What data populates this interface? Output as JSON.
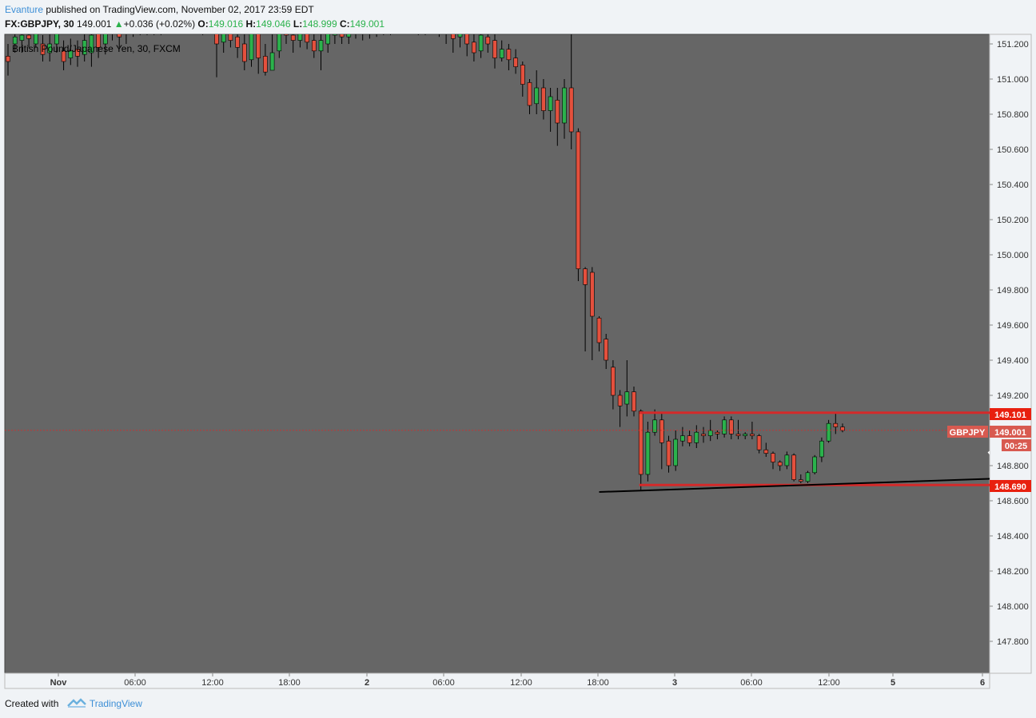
{
  "header": {
    "author": "Evanture",
    "published_text": "published on TradingView.com, November 02, 2017 23:59 EDT"
  },
  "ohlc_bar": {
    "symbol": "FX:GBPJPY, 30",
    "last": "149.001",
    "change": "+0.036 (+0.02%)",
    "o_label": "O:",
    "o": "149.016",
    "h_label": "H:",
    "h": "149.046",
    "l_label": "L:",
    "l": "148.999",
    "c_label": "C:",
    "c": "149.001"
  },
  "colors": {
    "background": "#666666",
    "up_candle": "#2bb24c",
    "down_candle": "#e4503d",
    "level_line": "#d42a2a",
    "trend_line": "#000000",
    "arrow": "#ffffff"
  },
  "footer": {
    "created_with": "Created with",
    "brand": "TradingView"
  },
  "chart_data": {
    "type": "candlestick",
    "title": "British Pound/Japanese Yen, 30, FXCM",
    "ylim": [
      147.6,
      151.35
    ],
    "y_ticks": [
      "151.200",
      "151.000",
      "150.800",
      "150.600",
      "150.400",
      "150.200",
      "150.000",
      "149.800",
      "149.600",
      "149.400",
      "149.200",
      "149.000",
      "148.800",
      "148.600",
      "148.400",
      "148.200",
      "148.000",
      "147.800"
    ],
    "x_ticks": [
      "Nov",
      "06:00",
      "12:00",
      "18:00",
      "2",
      "06:00",
      "12:00",
      "18:00",
      "3",
      "06:00",
      "12:00",
      "5",
      "6"
    ],
    "price_tags": {
      "resistance": "149.101",
      "support": "148.690",
      "symbol": "GBPJPY",
      "current": "149.001",
      "countdown": "00:25"
    },
    "levels": [
      {
        "name": "resistance",
        "value": 149.101
      },
      {
        "name": "support",
        "value": 148.69
      },
      {
        "name": "current",
        "value": 149.001
      }
    ],
    "trendline": {
      "from": [
        -6,
        148.65
      ],
      "to": [
        54,
        148.73
      ]
    },
    "arrow": {
      "from": [
        50,
        148.88
      ],
      "to": [
        63,
        148.24
      ]
    },
    "candles": [
      [
        0,
        151.13,
        151.1,
        151.2,
        151.02
      ],
      [
        1,
        151.2,
        151.24,
        151.3,
        151.15
      ],
      [
        2,
        151.22,
        151.25,
        151.35,
        151.15
      ],
      [
        3,
        151.25,
        151.23,
        151.35,
        151.18
      ],
      [
        4,
        151.2,
        151.28,
        151.35,
        151.18
      ],
      [
        5,
        151.2,
        151.14,
        151.25,
        151.1
      ],
      [
        6,
        151.15,
        151.2,
        151.27,
        151.1
      ],
      [
        7,
        151.2,
        151.26,
        151.33,
        151.15
      ],
      [
        8,
        151.16,
        151.1,
        151.22,
        151.05
      ],
      [
        9,
        151.12,
        151.16,
        151.23,
        151.08
      ],
      [
        10,
        151.17,
        151.13,
        151.22,
        151.07
      ],
      [
        11,
        151.14,
        151.22,
        151.3,
        151.1
      ],
      [
        12,
        151.15,
        151.25,
        151.3,
        151.07
      ],
      [
        13,
        151.28,
        151.18,
        151.3,
        151.12
      ],
      [
        14,
        151.2,
        151.3,
        151.35,
        151.14
      ],
      [
        15,
        151.28,
        151.32,
        151.35,
        151.22
      ],
      [
        16,
        151.28,
        151.24,
        151.35,
        151.18
      ],
      [
        17,
        151.26,
        151.3,
        151.34,
        151.2
      ],
      [
        18,
        151.3,
        151.28,
        151.35,
        151.24
      ],
      [
        19,
        151.29,
        151.32,
        151.35,
        151.25
      ],
      [
        20,
        151.3,
        151.28,
        151.34,
        151.25
      ],
      [
        21,
        151.28,
        151.31,
        151.35,
        151.25
      ],
      [
        22,
        151.3,
        151.29,
        151.34,
        151.25
      ],
      [
        23,
        151.3,
        151.32,
        151.35,
        151.26
      ],
      [
        24,
        151.31,
        151.3,
        151.35,
        151.27
      ],
      [
        25,
        151.3,
        151.32,
        151.35,
        151.27
      ],
      [
        26,
        151.31,
        151.3,
        151.35,
        151.27
      ],
      [
        27,
        151.3,
        151.32,
        151.35,
        151.27
      ],
      [
        28,
        151.32,
        151.29,
        151.35,
        151.25
      ],
      [
        29,
        151.3,
        151.33,
        151.36,
        151.26
      ],
      [
        30,
        151.33,
        151.2,
        151.35,
        151.01
      ],
      [
        31,
        151.21,
        151.3,
        151.35,
        151.15
      ],
      [
        32,
        151.3,
        151.22,
        151.33,
        151.18
      ],
      [
        33,
        151.24,
        151.18,
        151.28,
        151.12
      ],
      [
        34,
        151.2,
        151.1,
        151.27,
        151.05
      ],
      [
        35,
        151.11,
        151.28,
        151.33,
        151.07
      ],
      [
        36,
        151.27,
        151.12,
        151.35,
        151.03
      ],
      [
        37,
        151.13,
        151.04,
        151.2,
        151.02
      ],
      [
        38,
        151.05,
        151.15,
        151.3,
        151.05
      ],
      [
        39,
        151.16,
        151.3,
        151.35,
        151.12
      ],
      [
        40,
        151.3,
        151.25,
        151.35,
        151.2
      ],
      [
        41,
        151.25,
        151.22,
        151.3,
        151.15
      ],
      [
        42,
        151.22,
        151.28,
        151.33,
        151.18
      ],
      [
        43,
        151.27,
        151.21,
        151.3,
        151.17
      ],
      [
        44,
        151.22,
        151.16,
        151.28,
        151.12
      ],
      [
        45,
        151.16,
        151.22,
        151.27,
        151.05
      ],
      [
        46,
        151.2,
        151.26,
        151.3,
        151.15
      ],
      [
        47,
        151.25,
        151.28,
        151.32,
        151.2
      ],
      [
        48,
        151.27,
        151.24,
        151.32,
        151.2
      ],
      [
        49,
        151.24,
        151.28,
        151.33,
        151.2
      ],
      [
        50,
        151.28,
        151.3,
        151.35,
        151.23
      ],
      [
        51,
        151.3,
        151.27,
        151.35,
        151.22
      ],
      [
        52,
        151.27,
        151.31,
        151.35,
        151.23
      ],
      [
        53,
        151.3,
        151.28,
        151.35,
        151.24
      ],
      [
        54,
        151.28,
        151.31,
        151.36,
        151.25
      ],
      [
        55,
        151.3,
        151.29,
        151.35,
        151.25
      ],
      [
        56,
        151.29,
        151.32,
        151.36,
        151.26
      ],
      [
        57,
        151.31,
        151.3,
        151.35,
        151.26
      ],
      [
        58,
        151.3,
        151.32,
        151.36,
        151.27
      ],
      [
        59,
        151.31,
        151.29,
        151.35,
        151.25
      ],
      [
        60,
        151.29,
        151.32,
        151.35,
        151.25
      ],
      [
        61,
        151.31,
        151.3,
        151.35,
        151.26
      ],
      [
        62,
        151.3,
        151.28,
        151.33,
        151.24
      ],
      [
        63,
        151.28,
        151.26,
        151.32,
        151.2
      ],
      [
        64,
        151.27,
        151.23,
        151.3,
        151.15
      ],
      [
        65,
        151.24,
        151.27,
        151.33,
        151.18
      ],
      [
        66,
        151.27,
        151.2,
        151.3,
        151.13
      ],
      [
        67,
        151.21,
        151.15,
        151.27,
        151.1
      ],
      [
        68,
        151.16,
        151.25,
        151.3,
        151.12
      ],
      [
        69,
        151.24,
        151.2,
        151.3,
        151.15
      ],
      [
        70,
        151.22,
        151.12,
        151.28,
        151.06
      ],
      [
        71,
        151.12,
        151.17,
        151.22,
        151.1
      ],
      [
        72,
        151.17,
        151.11,
        151.2,
        151.05
      ],
      [
        73,
        151.12,
        151.07,
        151.17,
        151.03
      ],
      [
        74,
        151.08,
        150.97,
        151.1,
        150.9
      ],
      [
        75,
        150.98,
        150.85,
        151.0,
        150.8
      ],
      [
        76,
        150.86,
        150.95,
        151.05,
        150.8
      ],
      [
        77,
        150.95,
        150.82,
        151.0,
        150.77
      ],
      [
        78,
        150.82,
        150.9,
        150.95,
        150.7
      ],
      [
        79,
        150.88,
        150.75,
        150.95,
        150.62
      ],
      [
        80,
        150.75,
        150.95,
        151.0,
        150.66
      ],
      [
        81,
        150.95,
        150.7,
        151.33,
        150.6
      ],
      [
        82,
        150.7,
        149.92,
        150.72,
        149.85
      ],
      [
        83,
        149.92,
        149.83,
        149.93,
        149.45
      ],
      [
        84,
        149.9,
        149.65,
        149.93,
        149.4
      ],
      [
        85,
        149.64,
        149.5,
        149.65,
        149.45
      ],
      [
        86,
        149.52,
        149.4,
        149.55,
        149.35
      ],
      [
        87,
        149.36,
        149.2,
        149.4,
        149.12
      ],
      [
        88,
        149.2,
        149.14,
        149.23,
        149.02
      ],
      [
        89,
        149.15,
        149.22,
        149.4,
        149.08
      ],
      [
        90,
        149.22,
        149.11,
        149.25,
        149.08
      ],
      [
        91,
        149.11,
        148.75,
        149.12,
        148.66
      ],
      [
        92,
        148.75,
        148.99,
        149.05,
        148.71
      ],
      [
        93,
        148.99,
        149.06,
        149.12,
        148.97
      ],
      [
        94,
        149.06,
        148.93,
        149.1,
        148.78
      ],
      [
        95,
        148.94,
        148.8,
        148.97,
        148.76
      ],
      [
        96,
        148.8,
        148.95,
        149.0,
        148.77
      ],
      [
        97,
        148.94,
        148.97,
        149.02,
        148.91
      ],
      [
        98,
        148.97,
        148.93,
        149.0,
        148.91
      ],
      [
        99,
        148.93,
        148.99,
        149.03,
        148.9
      ],
      [
        100,
        148.98,
        148.97,
        149.02,
        148.93
      ],
      [
        101,
        148.97,
        149.0,
        149.06,
        148.94
      ],
      [
        102,
        148.99,
        148.98,
        149.0,
        148.95
      ],
      [
        103,
        148.98,
        149.06,
        149.08,
        148.96
      ],
      [
        104,
        149.06,
        148.98,
        149.08,
        148.95
      ],
      [
        105,
        148.98,
        148.97,
        149.06,
        148.95
      ],
      [
        106,
        148.97,
        148.98,
        148.99,
        148.95
      ],
      [
        107,
        148.98,
        148.97,
        149.05,
        148.95
      ],
      [
        108,
        148.97,
        148.89,
        148.98,
        148.87
      ],
      [
        109,
        148.89,
        148.87,
        148.93,
        148.85
      ],
      [
        110,
        148.87,
        148.82,
        148.88,
        148.78
      ],
      [
        111,
        148.82,
        148.8,
        148.83,
        148.77
      ],
      [
        112,
        148.8,
        148.86,
        148.88,
        148.78
      ],
      [
        113,
        148.86,
        148.72,
        148.87,
        148.71
      ],
      [
        114,
        148.72,
        148.71,
        148.75,
        148.7
      ],
      [
        115,
        148.71,
        148.76,
        148.77,
        148.7
      ],
      [
        116,
        148.76,
        148.85,
        148.86,
        148.75
      ],
      [
        117,
        148.85,
        148.94,
        148.96,
        148.82
      ],
      [
        118,
        148.94,
        149.04,
        149.06,
        148.93
      ],
      [
        119,
        149.04,
        149.02,
        149.1,
        148.98
      ],
      [
        120,
        149.02,
        149.0,
        149.04,
        148.99
      ]
    ]
  }
}
